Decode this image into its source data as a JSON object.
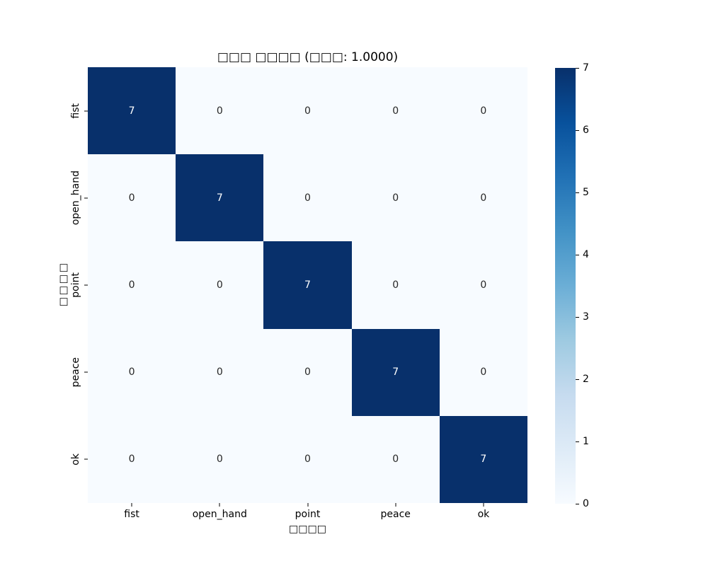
{
  "chart_data": {
    "type": "heatmap",
    "title": "□□□ □□□□ (□□□: 1.0000)",
    "xlabel": "□□□□",
    "ylabel": "□□□□",
    "x_categories": [
      "fist",
      "open_hand",
      "point",
      "peace",
      "ok"
    ],
    "y_categories": [
      "fist",
      "open_hand",
      "point",
      "peace",
      "ok"
    ],
    "matrix": [
      [
        7,
        0,
        0,
        0,
        0
      ],
      [
        0,
        7,
        0,
        0,
        0
      ],
      [
        0,
        0,
        7,
        0,
        0
      ],
      [
        0,
        0,
        0,
        7,
        0
      ],
      [
        0,
        0,
        0,
        0,
        7
      ]
    ],
    "vmin": 0,
    "vmax": 7,
    "colormap": "Blues",
    "colormap_stops": [
      "#f7fbff",
      "#deebf7",
      "#c6dbef",
      "#9ecae1",
      "#6baed6",
      "#4292c6",
      "#2171b5",
      "#08519c",
      "#08306b"
    ],
    "colorbar_ticks": [
      0,
      1,
      2,
      3,
      4,
      5,
      6,
      7
    ],
    "legend_position": "right-colorbar",
    "grid": false
  },
  "colors": {
    "background": "#ffffff",
    "cell_high": "#08306b",
    "cell_low": "#f7fbff",
    "annot_on_dark": "#ffffff",
    "annot_on_light": "#262626",
    "tick": "#000000",
    "text": "#000000"
  }
}
